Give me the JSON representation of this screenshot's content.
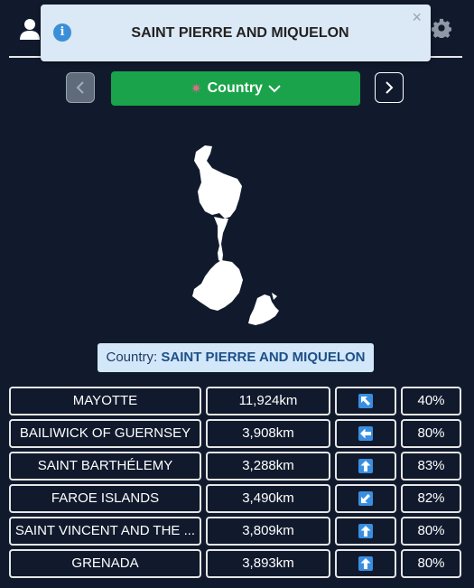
{
  "toast": {
    "title": "SAINT PIERRE AND MIQUELON",
    "info_icon": "i",
    "close_icon": "×"
  },
  "country_button": {
    "label": "Country"
  },
  "country_label": {
    "prefix": "Country:",
    "name": "SAINT PIERRE AND MIQUELON"
  },
  "guesses": [
    {
      "name": "MAYOTTE",
      "distance": "11,924km",
      "direction": "northwest",
      "percent": "40%"
    },
    {
      "name": "BAILIWICK OF GUERNSEY",
      "distance": "3,908km",
      "direction": "west",
      "percent": "80%"
    },
    {
      "name": "SAINT BARTHÉLEMY",
      "distance": "3,288km",
      "direction": "north",
      "percent": "83%"
    },
    {
      "name": "FAROE ISLANDS",
      "distance": "3,490km",
      "direction": "southwest",
      "percent": "82%"
    },
    {
      "name": "SAINT VINCENT AND THE ...",
      "distance": "3,809km",
      "direction": "north",
      "percent": "80%"
    },
    {
      "name": "GRENADA",
      "distance": "3,893km",
      "direction": "north",
      "percent": "80%"
    }
  ],
  "colors": {
    "background": "#111a2d",
    "accent_green": "#1aa34a",
    "toast_bg": "#dbe8f5",
    "label_bg": "#d2e7fa",
    "arrow_blue": "#3a8ee0"
  }
}
